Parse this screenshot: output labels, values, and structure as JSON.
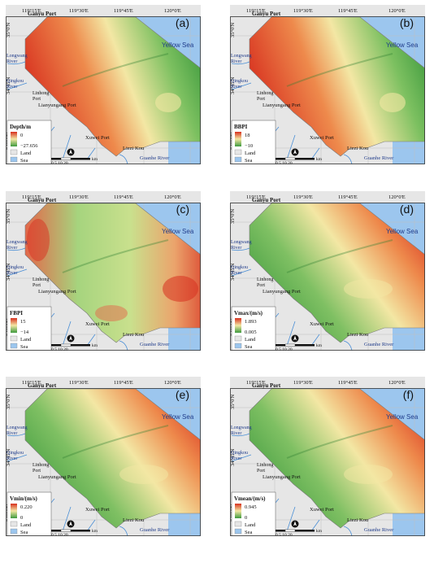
{
  "colors": {
    "sea": "#9cc6ee",
    "land": "#e6e6e6",
    "grid": "#bfbfbf",
    "red": "#d7301f",
    "yellow": "#f3e7a4",
    "green": "#3e9a3e"
  },
  "axes": {
    "top_ticks": [
      "119°15'E",
      "119°30'E",
      "119°45'E",
      "120°0'E"
    ],
    "left_ticks": [
      "35°0'N",
      "34°45'N",
      "34°30'N"
    ]
  },
  "places": {
    "ganyu": "Ganyu Port",
    "yellow_sea": "Yellow Sea",
    "longwang": "Longwang\nRiver",
    "qingkou": "Qingkou\nRiver",
    "linhong": "Linhong\nPort",
    "lianyungang": "Lianyungang Port",
    "xuwei": "Xuwei Port",
    "liezi": "Liezi Kou",
    "guanhe": "Guanhe River"
  },
  "scale": {
    "label": "0   5   10       20",
    "unit": "km"
  },
  "legend_static": {
    "land": "Land",
    "sea": "Sea"
  },
  "panels": [
    {
      "tag": "(a)",
      "var": "Depth/m",
      "max": "0",
      "min": "−27.656",
      "scheme": "depth"
    },
    {
      "tag": "(b)",
      "var": "BBPI",
      "max": "18",
      "min": "−10",
      "scheme": "depth"
    },
    {
      "tag": "(c)",
      "var": "FBPI",
      "max": "15",
      "min": "−14",
      "scheme": "fbpi"
    },
    {
      "tag": "(d)",
      "var": "Vmax/(m/s)",
      "max": "1.893",
      "min": "0.005",
      "scheme": "velo"
    },
    {
      "tag": "(e)",
      "var": "Vmin/(m/s)",
      "max": "0.220",
      "min": "0",
      "scheme": "velo"
    },
    {
      "tag": "(f)",
      "var": "Vmean/(m/s)",
      "max": "0.945",
      "min": "0",
      "scheme": "velo"
    }
  ]
}
